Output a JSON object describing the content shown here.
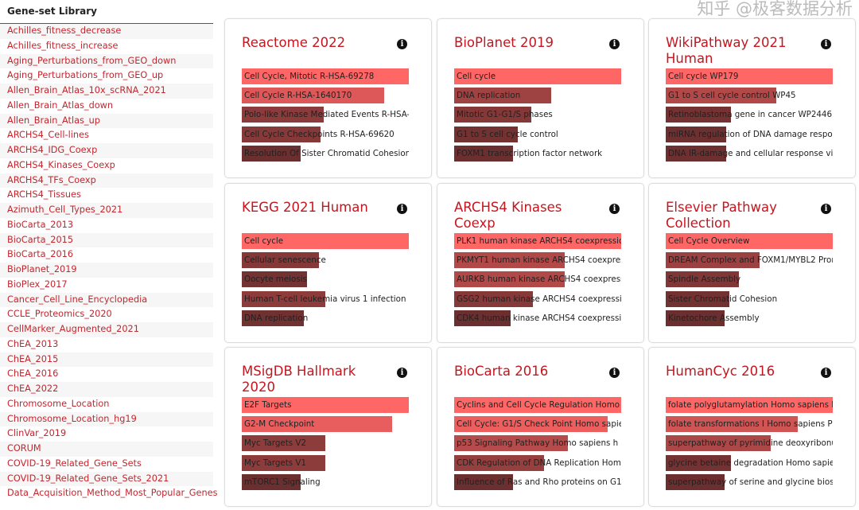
{
  "sidebar": {
    "title": "Gene-set Library",
    "items": [
      "Achilles_fitness_decrease",
      "Achilles_fitness_increase",
      "Aging_Perturbations_from_GEO_down",
      "Aging_Perturbations_from_GEO_up",
      "Allen_Brain_Atlas_10x_scRNA_2021",
      "Allen_Brain_Atlas_down",
      "Allen_Brain_Atlas_up",
      "ARCHS4_Cell-lines",
      "ARCHS4_IDG_Coexp",
      "ARCHS4_Kinases_Coexp",
      "ARCHS4_TFs_Coexp",
      "ARCHS4_Tissues",
      "Azimuth_Cell_Types_2021",
      "BioCarta_2013",
      "BioCarta_2015",
      "BioCarta_2016",
      "BioPlanet_2019",
      "BioPlex_2017",
      "Cancer_Cell_Line_Encyclopedia",
      "CCLE_Proteomics_2020",
      "CellMarker_Augmented_2021",
      "ChEA_2013",
      "ChEA_2015",
      "ChEA_2016",
      "ChEA_2022",
      "Chromosome_Location",
      "Chromosome_Location_hg19",
      "ClinVar_2019",
      "CORUM",
      "COVID-19_Related_Gene_Sets",
      "COVID-19_Related_Gene_Sets_2021",
      "Data_Acquisition_Method_Most_Popular_Genes"
    ]
  },
  "colors": {
    "bar_high": "#ff6666",
    "bar_low": "#6b2f2f",
    "title": "#c4161f",
    "link": "#c4262e"
  },
  "cards": [
    {
      "title": "Reactome 2022",
      "icon": "info-icon",
      "terms": [
        {
          "label": "Cell Cycle, Mitotic R-HSA-69278",
          "fraction": 1
        },
        {
          "label": "Cell Cycle R-HSA-1640170",
          "fraction": 0.85
        },
        {
          "label": "Polo-like Kinase Mediated Events R-HSA-156",
          "fraction": 0.49
        },
        {
          "label": "Cell Cycle Checkpoints R-HSA-69620",
          "fraction": 0.47
        },
        {
          "label": "Resolution Of Sister Chromatid Cohesion R-I",
          "fraction": 0.35
        }
      ]
    },
    {
      "title": "BioPlanet 2019",
      "icon": "info-icon",
      "terms": [
        {
          "label": "Cell cycle",
          "fraction": 1
        },
        {
          "label": "DNA replication",
          "fraction": 0.58
        },
        {
          "label": "Mitotic G1-G1/S phases",
          "fraction": 0.46
        },
        {
          "label": "G1 to S cell cycle control",
          "fraction": 0.38
        },
        {
          "label": "FOXM1 transcription factor network",
          "fraction": 0.35
        }
      ]
    },
    {
      "title": "WikiPathway 2021 Human",
      "icon": "info-icon",
      "terms": [
        {
          "label": "Cell cycle WP179",
          "fraction": 1
        },
        {
          "label": "G1 to S cell cycle control WP45",
          "fraction": 0.66
        },
        {
          "label": "Retinoblastoma gene in cancer WP2446",
          "fraction": 0.39
        },
        {
          "label": "miRNA regulation of DNA damage response",
          "fraction": 0.36
        },
        {
          "label": "DNA IR-damage and cellular response via AT",
          "fraction": 0.36
        }
      ]
    },
    {
      "title": "KEGG 2021 Human",
      "icon": "info-icon",
      "terms": [
        {
          "label": "Cell cycle",
          "fraction": 1
        },
        {
          "label": "Cellular senescence",
          "fraction": 0.46
        },
        {
          "label": "Oocyte meiosis",
          "fraction": 0.39
        },
        {
          "label": "Human T-cell leukemia virus 1 infection",
          "fraction": 0.5
        },
        {
          "label": "DNA replication",
          "fraction": 0.37
        }
      ]
    },
    {
      "title": "ARCHS4 Kinases Coexp",
      "icon": "info-icon",
      "terms": [
        {
          "label": "PLK1 human kinase ARCHS4 coexpression",
          "fraction": 1
        },
        {
          "label": "PKMYT1 human kinase ARCHS4 coexpressio",
          "fraction": 0.66
        },
        {
          "label": "AURKB human kinase ARCHS4 coexpression",
          "fraction": 0.66
        },
        {
          "label": "GSG2 human kinase ARCHS4 coexpression",
          "fraction": 0.47
        },
        {
          "label": "CDK4 human kinase ARCHS4 coexpression",
          "fraction": 0.34
        }
      ]
    },
    {
      "title": "Elsevier Pathway Collection",
      "icon": "info-icon",
      "terms": [
        {
          "label": "Cell Cycle Overview",
          "fraction": 1
        },
        {
          "label": "DREAM Complex and FOXM1/MYBL2 Promo",
          "fraction": 0.56
        },
        {
          "label": "Spindle Assembly",
          "fraction": 0.44
        },
        {
          "label": "Sister Chromatid Cohesion",
          "fraction": 0.38
        },
        {
          "label": "Kinetochore Assembly",
          "fraction": 0.35
        }
      ]
    },
    {
      "title": "MSigDB Hallmark 2020",
      "icon": "info-icon",
      "terms": [
        {
          "label": "E2F Targets",
          "fraction": 1
        },
        {
          "label": "G2-M Checkpoint",
          "fraction": 0.9
        },
        {
          "label": "Myc Targets V2",
          "fraction": 0.5
        },
        {
          "label": "Myc Targets V1",
          "fraction": 0.5
        },
        {
          "label": "mTORC1 Signaling",
          "fraction": 0.35
        }
      ]
    },
    {
      "title": "BioCarta 2016",
      "icon": "info-icon",
      "terms": [
        {
          "label": "Cyclins and Cell Cycle Regulation Homo sapi",
          "fraction": 1
        },
        {
          "label": "Cell Cycle: G1/S Check Point Homo sapiens h",
          "fraction": 0.92
        },
        {
          "label": "p53 Signaling Pathway Homo sapiens h p53l",
          "fraction": 0.68
        },
        {
          "label": "CDK Regulation of DNA Replication Homo sa",
          "fraction": 0.54
        },
        {
          "label": "Influence of Ras and Rho proteins on G1 to S",
          "fraction": 0.35
        }
      ]
    },
    {
      "title": "HumanCyc 2016",
      "icon": "info-icon",
      "terms": [
        {
          "label": "folate polyglutamylation Homo sapiens PWY",
          "fraction": 1
        },
        {
          "label": "folate transformations I Homo sapiens PWY",
          "fraction": 0.79
        },
        {
          "label": "superpathway of pyrimidine deoxyribonucle",
          "fraction": 0.63
        },
        {
          "label": "glycine betaine degradation Homo sapiens",
          "fraction": 0.39
        },
        {
          "label": "superpathway of serine and glycine biosynt",
          "fraction": 0.35
        }
      ]
    }
  ],
  "watermark": "知乎 @极客数据分析"
}
